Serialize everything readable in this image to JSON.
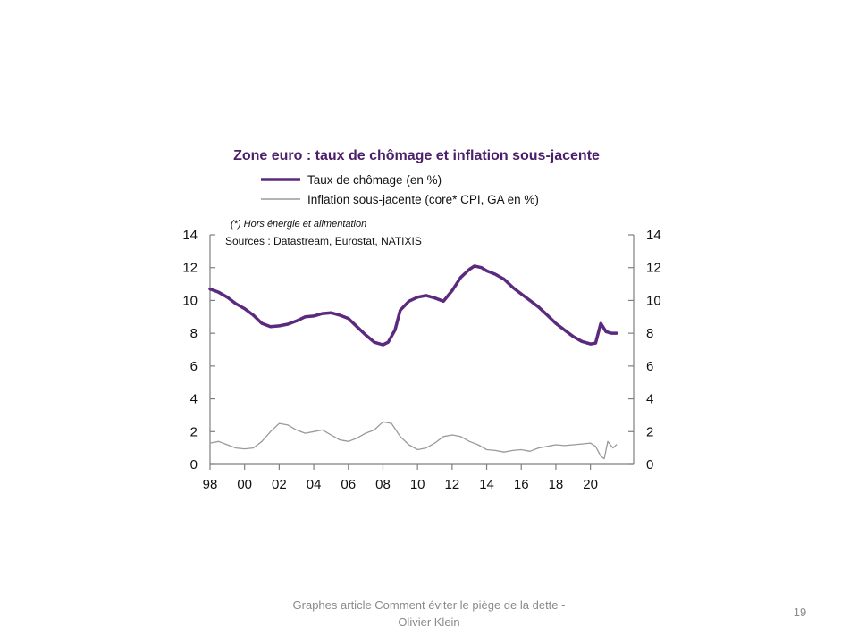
{
  "slide": {
    "footer": "Graphes article Comment  éviter le piège de la dette - Olivier Klein",
    "page_number": "19"
  },
  "chart_data": {
    "type": "line",
    "title": "Zone euro : taux de chômage et inflation sous-jacente",
    "note": "(*) Hors énergie et alimentation",
    "sources": "Sources  : Datastream,  Eurostat,  NATIXIS",
    "legend_placement": "top",
    "grid": false,
    "x_range": [
      1998,
      2022.5
    ],
    "ylim_left": [
      0,
      14
    ],
    "ylim_right": [
      0,
      14
    ],
    "x_tick_labels": [
      "98",
      "00",
      "02",
      "04",
      "06",
      "08",
      "10",
      "12",
      "14",
      "16",
      "18",
      "20"
    ],
    "x_tick_values": [
      1998,
      2000,
      2002,
      2004,
      2006,
      2008,
      2010,
      2012,
      2014,
      2016,
      2018,
      2020
    ],
    "y_ticks_left": [
      "0",
      "2",
      "4",
      "6",
      "8",
      "10",
      "12",
      "14"
    ],
    "y_ticks_right": [
      "0",
      "2",
      "4",
      "6",
      "8",
      "10",
      "12",
      "14"
    ],
    "series": [
      {
        "name": "Taux de chômage (en %)",
        "color": "#5b2a7e",
        "x": [
          1998.0,
          1998.5,
          1999.0,
          1999.5,
          2000.0,
          2000.5,
          2001.0,
          2001.5,
          2002.0,
          2002.5,
          2003.0,
          2003.5,
          2004.0,
          2004.5,
          2005.0,
          2005.5,
          2006.0,
          2006.5,
          2007.0,
          2007.5,
          2008.0,
          2008.3,
          2008.7,
          2009.0,
          2009.5,
          2010.0,
          2010.5,
          2011.0,
          2011.5,
          2012.0,
          2012.5,
          2013.0,
          2013.3,
          2013.7,
          2014.0,
          2014.5,
          2015.0,
          2015.5,
          2016.0,
          2016.5,
          2017.0,
          2017.5,
          2018.0,
          2018.5,
          2019.0,
          2019.5,
          2020.0,
          2020.3,
          2020.6,
          2020.9,
          2021.2,
          2021.5
        ],
        "values": [
          10.7,
          10.5,
          10.2,
          9.8,
          9.5,
          9.1,
          8.6,
          8.4,
          8.45,
          8.55,
          8.75,
          9.0,
          9.05,
          9.2,
          9.25,
          9.1,
          8.9,
          8.4,
          7.9,
          7.45,
          7.3,
          7.45,
          8.2,
          9.4,
          9.95,
          10.2,
          10.3,
          10.15,
          9.95,
          10.6,
          11.4,
          11.9,
          12.1,
          12.0,
          11.8,
          11.6,
          11.3,
          10.8,
          10.4,
          10.0,
          9.6,
          9.1,
          8.6,
          8.2,
          7.8,
          7.5,
          7.35,
          7.4,
          8.6,
          8.1,
          8.0,
          8.0
        ]
      },
      {
        "name": "Inflation sous-jacente (core* CPI, GA en %)",
        "color": "#9a9a9a",
        "x": [
          1998.0,
          1998.5,
          1999.0,
          1999.5,
          2000.0,
          2000.5,
          2001.0,
          2001.5,
          2002.0,
          2002.5,
          2003.0,
          2003.5,
          2004.0,
          2004.5,
          2005.0,
          2005.5,
          2006.0,
          2006.5,
          2007.0,
          2007.5,
          2008.0,
          2008.5,
          2009.0,
          2009.5,
          2010.0,
          2010.5,
          2011.0,
          2011.5,
          2012.0,
          2012.5,
          2013.0,
          2013.5,
          2014.0,
          2014.5,
          2015.0,
          2015.5,
          2016.0,
          2016.5,
          2017.0,
          2017.5,
          2018.0,
          2018.5,
          2019.0,
          2019.5,
          2020.0,
          2020.3,
          2020.6,
          2020.8,
          2021.0,
          2021.3,
          2021.5
        ],
        "values": [
          1.3,
          1.4,
          1.2,
          1.0,
          0.95,
          1.0,
          1.4,
          2.0,
          2.5,
          2.4,
          2.1,
          1.9,
          2.0,
          2.1,
          1.8,
          1.5,
          1.4,
          1.6,
          1.9,
          2.1,
          2.6,
          2.5,
          1.7,
          1.2,
          0.9,
          1.0,
          1.3,
          1.7,
          1.8,
          1.7,
          1.4,
          1.2,
          0.9,
          0.85,
          0.75,
          0.85,
          0.9,
          0.8,
          1.0,
          1.1,
          1.2,
          1.15,
          1.2,
          1.25,
          1.3,
          1.1,
          0.5,
          0.35,
          1.4,
          1.0,
          1.2
        ]
      }
    ]
  }
}
